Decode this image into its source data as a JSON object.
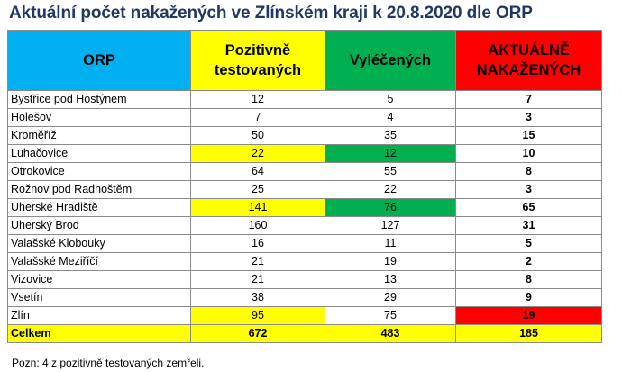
{
  "title": "Aktuální počet nakažených ve Zlínském kraji k 20.8.2020 dle ORP",
  "columns": {
    "orp": "ORP",
    "positive_l1": "Pozitivně",
    "positive_l2": "testovaných",
    "cured": "Vyléčených",
    "current_l1": "AKTUÁLNĚ",
    "current_l2": "NAKAŽENÝCH"
  },
  "header_colors": {
    "orp": "#00b0f0",
    "positive": "#ffff00",
    "cured": "#00b050",
    "current": "#ff0000"
  },
  "rows": [
    {
      "name": "Bystřice pod Hostýnem",
      "positive": "12",
      "cured": "5",
      "current": "7"
    },
    {
      "name": "Holešov",
      "positive": "7",
      "cured": "4",
      "current": "3"
    },
    {
      "name": "Kroměříž",
      "positive": "50",
      "cured": "35",
      "current": "15"
    },
    {
      "name": "Luhačovice",
      "positive": "22",
      "cured": "12",
      "current": "10"
    },
    {
      "name": "Otrokovice",
      "positive": "64",
      "cured": "55",
      "current": "8"
    },
    {
      "name": "Rožnov pod Radhoštěm",
      "positive": "25",
      "cured": "22",
      "current": "3"
    },
    {
      "name": "Uherské Hradiště",
      "positive": "141",
      "cured": "76",
      "current": "65"
    },
    {
      "name": "Uherský Brod",
      "positive": "160",
      "cured": "127",
      "current": "31"
    },
    {
      "name": "Valašské Klobouky",
      "positive": "16",
      "cured": "11",
      "current": "5"
    },
    {
      "name": "Valašské Meziříčí",
      "positive": "21",
      "cured": "19",
      "current": "2"
    },
    {
      "name": "Vizovice",
      "positive": "21",
      "cured": "13",
      "current": "8"
    },
    {
      "name": "Vsetín",
      "positive": "38",
      "cured": "29",
      "current": "9"
    },
    {
      "name": "Zlín",
      "positive": "95",
      "cured": "75",
      "current": "19"
    }
  ],
  "total": {
    "name": "Celkem",
    "positive": "672",
    "cured": "483",
    "current": "185"
  },
  "note": "Pozn: 4 z pozitivně testovaných zemřeli."
}
